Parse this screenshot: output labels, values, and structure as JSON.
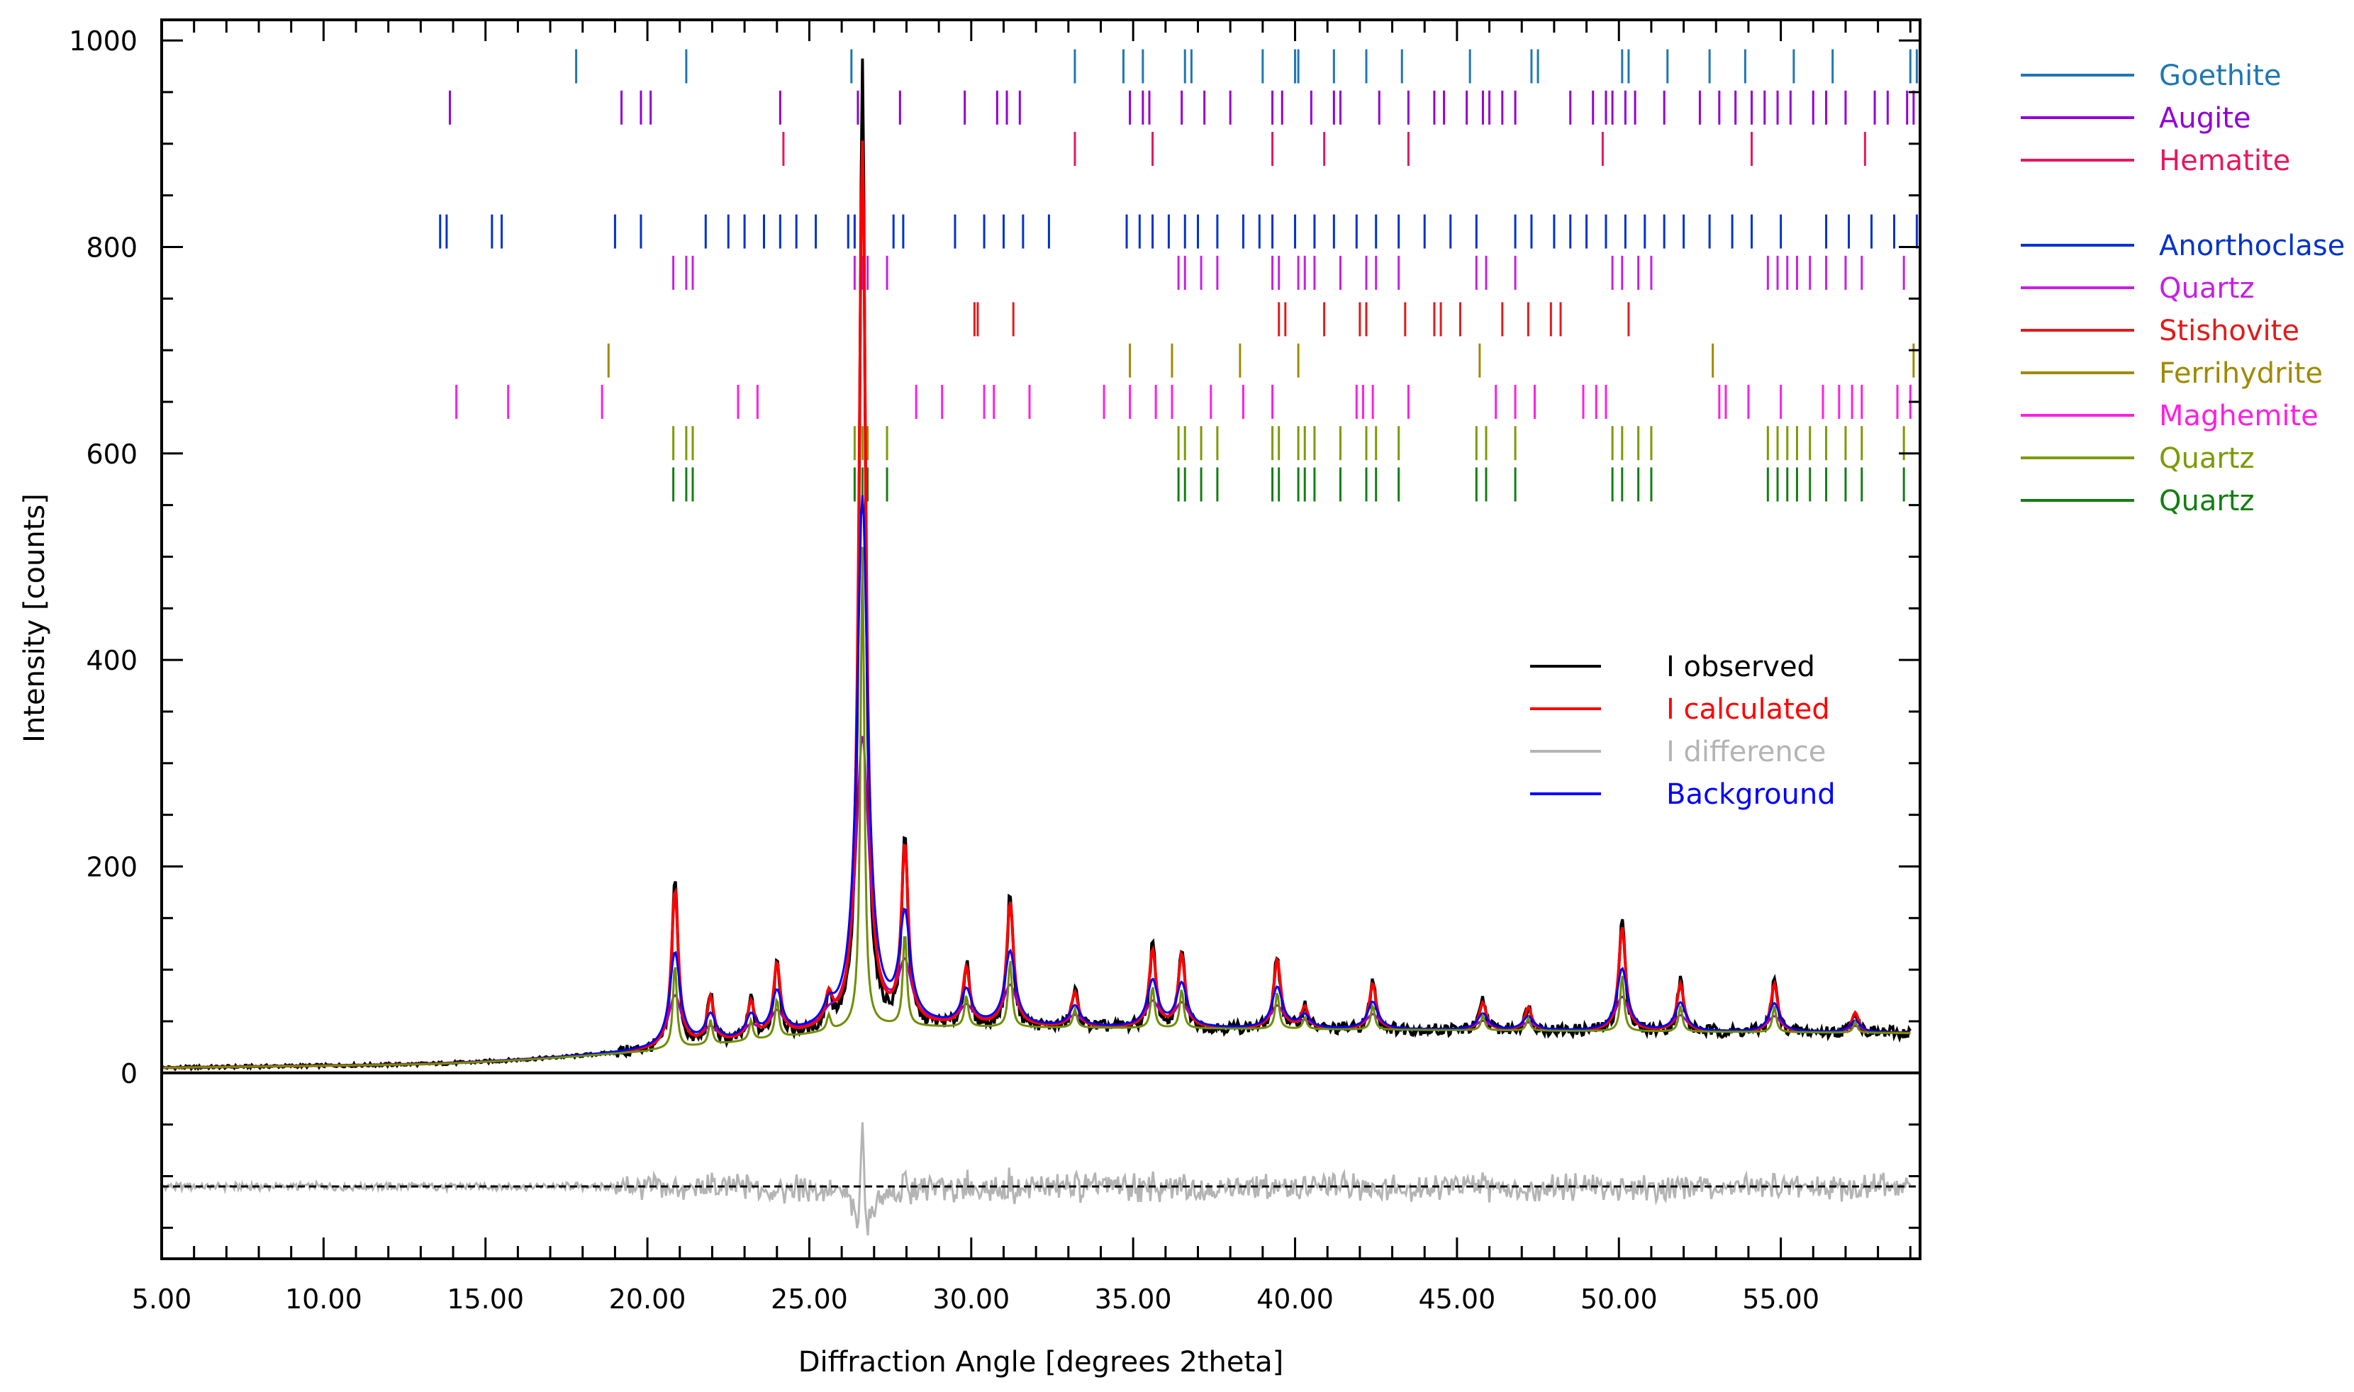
{
  "chart_data": {
    "type": "line",
    "xlabel": "Diffraction Angle [degrees 2theta]",
    "ylabel": "Intensity [counts]",
    "xlim": [
      5,
      59.3
    ],
    "ylim": [
      -180,
      1020
    ],
    "x_ticks": [
      5,
      10,
      15,
      20,
      25,
      30,
      35,
      40,
      45,
      50,
      55
    ],
    "x_tick_labels": [
      "5.00",
      "10.00",
      "15.00",
      "20.00",
      "25.00",
      "30.00",
      "35.00",
      "40.00",
      "45.00",
      "50.00",
      "55.00"
    ],
    "y_ticks": [
      0,
      200,
      400,
      600,
      800,
      1000
    ],
    "y_tick_labels": [
      "0",
      "200",
      "400",
      "600",
      "800",
      "1000"
    ],
    "difference_offset": -110,
    "series": [
      {
        "name": "I observed",
        "color": "#000000"
      },
      {
        "name": "I calculated",
        "color": "#ff0000"
      },
      {
        "name": "I difference",
        "color": "#b4b4b4"
      },
      {
        "name": "Background",
        "color": "#0000ff"
      }
    ],
    "peaks": [
      {
        "x": 20.85,
        "y": 190
      },
      {
        "x": 21.95,
        "y": 75
      },
      {
        "x": 23.2,
        "y": 70
      },
      {
        "x": 24.0,
        "y": 110
      },
      {
        "x": 25.6,
        "y": 70
      },
      {
        "x": 26.64,
        "y": 975
      },
      {
        "x": 27.95,
        "y": 230
      },
      {
        "x": 29.85,
        "y": 105
      },
      {
        "x": 31.2,
        "y": 175
      },
      {
        "x": 33.2,
        "y": 80
      },
      {
        "x": 35.6,
        "y": 125
      },
      {
        "x": 36.5,
        "y": 120
      },
      {
        "x": 39.45,
        "y": 115
      },
      {
        "x": 40.3,
        "y": 65
      },
      {
        "x": 42.4,
        "y": 90
      },
      {
        "x": 45.8,
        "y": 70
      },
      {
        "x": 47.2,
        "y": 65
      },
      {
        "x": 50.1,
        "y": 150
      },
      {
        "x": 51.9,
        "y": 90
      },
      {
        "x": 54.8,
        "y": 90
      },
      {
        "x": 57.3,
        "y": 60
      }
    ],
    "phases": [
      {
        "name": "Goethite",
        "color": "#1f77b4",
        "y": 975,
        "positions": [
          17.8,
          21.2,
          26.3,
          33.2,
          34.7,
          35.3,
          36.6,
          36.8,
          39.0,
          40.0,
          40.1,
          41.2,
          42.2,
          43.3,
          45.4,
          47.3,
          47.5,
          50.1,
          50.3,
          51.5,
          52.8,
          53.9,
          55.4,
          56.6,
          59.0,
          59.2
        ]
      },
      {
        "name": "Augite",
        "color": "#9400d3",
        "y": 935,
        "positions": [
          13.9,
          19.2,
          19.8,
          20.1,
          24.1,
          26.5,
          27.8,
          29.8,
          30.8,
          31.1,
          31.5,
          34.9,
          35.3,
          35.5,
          36.5,
          37.2,
          38.0,
          39.3,
          39.6,
          40.5,
          41.2,
          41.4,
          42.6,
          43.5,
          44.3,
          44.6,
          45.3,
          45.8,
          46.0,
          46.4,
          46.8,
          48.5,
          49.2,
          49.6,
          49.8,
          50.2,
          50.5,
          51.4,
          52.5,
          53.1,
          53.6,
          54.1,
          54.5,
          54.9,
          55.3,
          56.0,
          56.4,
          57.0,
          57.9,
          58.3,
          58.9,
          59.1
        ]
      },
      {
        "name": "Hematite",
        "color": "#e8175d",
        "y": 895,
        "positions": [
          24.2,
          33.2,
          35.6,
          39.3,
          40.9,
          43.5,
          49.5,
          54.1,
          57.6
        ]
      },
      {
        "name": "Anorthoclase",
        "color": "#0033cc",
        "y": 815,
        "positions": [
          13.6,
          13.8,
          15.2,
          15.5,
          19.0,
          19.8,
          21.8,
          22.5,
          23.0,
          23.6,
          24.1,
          24.6,
          25.2,
          26.2,
          26.4,
          27.6,
          27.9,
          29.5,
          30.4,
          31.0,
          31.6,
          32.4,
          34.8,
          35.2,
          35.6,
          36.1,
          36.6,
          37.0,
          37.6,
          38.4,
          38.9,
          39.3,
          40.0,
          40.6,
          41.2,
          41.9,
          42.5,
          43.2,
          44.0,
          44.8,
          45.6,
          46.8,
          47.3,
          48.0,
          48.5,
          49.0,
          49.6,
          50.2,
          50.8,
          51.4,
          52.0,
          52.8,
          53.5,
          54.1,
          55.0,
          56.4,
          57.1,
          57.8,
          58.5,
          59.2
        ]
      },
      {
        "name": "Quartz",
        "color": "#c71fe6",
        "y": 775,
        "positions": [
          20.8,
          21.2,
          21.4,
          26.4,
          26.64,
          26.8,
          27.4,
          36.4,
          36.6,
          37.1,
          37.6,
          39.3,
          39.5,
          40.1,
          40.3,
          40.6,
          41.4,
          42.2,
          42.5,
          43.2,
          45.6,
          45.9,
          46.8,
          49.8,
          50.1,
          50.6,
          51.0,
          54.6,
          54.9,
          55.2,
          55.5,
          55.9,
          56.4,
          57.0,
          57.5,
          58.8
        ]
      },
      {
        "name": "Stishovite",
        "color": "#e11b1b",
        "y": 730,
        "positions": [
          30.1,
          30.2,
          31.3,
          39.5,
          39.7,
          40.9,
          42.0,
          42.2,
          43.4,
          44.3,
          44.5,
          45.1,
          46.4,
          47.2,
          47.9,
          48.2,
          50.3
        ]
      },
      {
        "name": "Ferrihydrite",
        "color": "#a08a00",
        "y": 690,
        "positions": [
          18.8,
          34.9,
          36.2,
          38.3,
          40.1,
          45.7,
          52.9,
          59.1
        ]
      },
      {
        "name": "Maghemite",
        "color": "#ff1fe0",
        "y": 650,
        "positions": [
          14.1,
          15.7,
          18.6,
          22.8,
          23.4,
          28.3,
          29.1,
          30.4,
          30.7,
          31.8,
          34.1,
          34.9,
          35.7,
          36.2,
          37.4,
          38.4,
          39.3,
          41.9,
          42.1,
          42.4,
          43.5,
          46.2,
          46.8,
          47.4,
          48.9,
          49.3,
          49.6,
          53.1,
          53.3,
          54.0,
          55.0,
          56.3,
          56.8,
          57.2,
          57.5,
          58.6,
          59.0,
          59.3
        ]
      },
      {
        "name": "Quartz",
        "color": "#7b9b00",
        "y": 610,
        "positions": [
          20.8,
          21.2,
          21.4,
          26.4,
          26.64,
          26.8,
          27.4,
          36.4,
          36.6,
          37.1,
          37.6,
          39.3,
          39.5,
          40.1,
          40.3,
          40.6,
          41.4,
          42.2,
          42.5,
          43.2,
          45.6,
          45.9,
          46.8,
          49.8,
          50.1,
          50.6,
          51.0,
          54.6,
          54.9,
          55.2,
          55.5,
          55.9,
          56.4,
          57.0,
          57.5,
          58.8
        ]
      },
      {
        "name": "Quartz",
        "color": "#127f12",
        "y": 570,
        "positions": [
          20.8,
          21.2,
          21.4,
          26.4,
          26.64,
          26.8,
          27.4,
          36.4,
          36.6,
          37.1,
          37.6,
          39.3,
          39.5,
          40.1,
          40.3,
          40.6,
          41.4,
          42.2,
          42.5,
          43.2,
          45.6,
          45.9,
          46.8,
          49.8,
          50.1,
          50.6,
          51.0,
          54.6,
          54.9,
          55.2,
          55.5,
          55.9,
          56.4,
          57.0,
          57.5,
          58.8
        ]
      }
    ]
  }
}
